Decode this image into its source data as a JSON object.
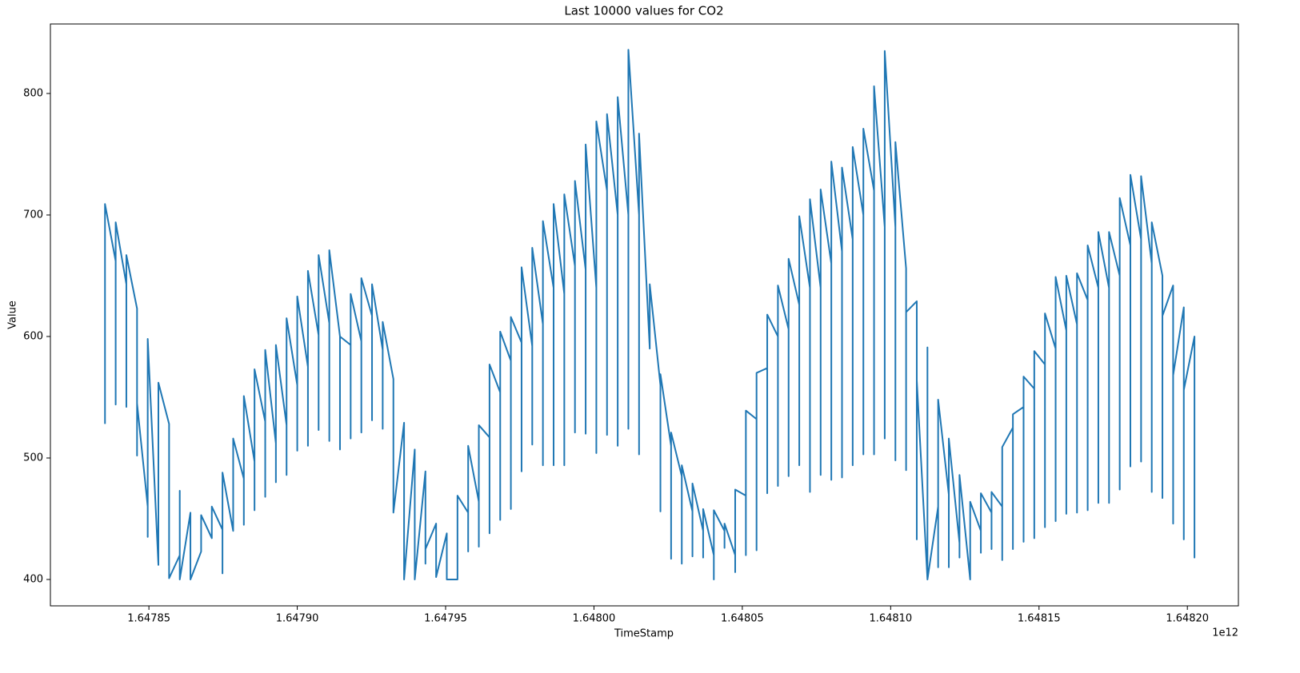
{
  "chart_data": {
    "type": "line",
    "title": "Last 10000 values for CO2",
    "x_label": "TimeStamp",
    "y_label": "Value",
    "x_offset_label": "1e12",
    "color": "#1f77b4",
    "grid": false,
    "xlim": [
      1.6478168,
      1.6482172
    ],
    "xticks": [
      {
        "value": 1.64785,
        "label": "1.64785"
      },
      {
        "value": 1.6479,
        "label": "1.64790"
      },
      {
        "value": 1.64795,
        "label": "1.64795"
      },
      {
        "value": 1.648,
        "label": "1.64800"
      },
      {
        "value": 1.64805,
        "label": "1.64805"
      },
      {
        "value": 1.6481,
        "label": "1.64810"
      },
      {
        "value": 1.64815,
        "label": "1.64815"
      },
      {
        "value": 1.6482,
        "label": "1.64820"
      }
    ],
    "ylim": [
      378.3,
      857.2
    ],
    "yticks": [
      400,
      500,
      600,
      700,
      800
    ],
    "x": [
      1.6478352,
      1.6478352,
      1.6478388,
      1.6478388,
      1.6478388,
      1.6478424,
      1.6478424,
      1.6478424,
      1.647846,
      1.647846,
      1.647846,
      1.6478496,
      1.6478496,
      1.6478496,
      1.6478532,
      1.6478532,
      1.6478568,
      1.6478568,
      1.6478604,
      1.6478604,
      1.6478604,
      1.647864,
      1.647864,
      1.6478676,
      1.6478676,
      1.6478712,
      1.6478712,
      1.6478748,
      1.6478748,
      1.6478748,
      1.6478784,
      1.6478784,
      1.647882,
      1.647882,
      1.647882,
      1.6478856,
      1.6478856,
      1.6478856,
      1.6478892,
      1.6478892,
      1.6478892,
      1.6478928,
      1.6478928,
      1.6478928,
      1.6478964,
      1.6478964,
      1.6478964,
      1.6479,
      1.6479,
      1.6479,
      1.6479036,
      1.6479036,
      1.6479036,
      1.6479072,
      1.6479072,
      1.6479072,
      1.6479108,
      1.6479108,
      1.6479108,
      1.6479144,
      1.6479144,
      1.6479144,
      1.647918,
      1.647918,
      1.647918,
      1.6479216,
      1.6479216,
      1.6479216,
      1.6479252,
      1.6479252,
      1.6479252,
      1.6479288,
      1.6479288,
      1.6479288,
      1.6479324,
      1.6479324,
      1.647936,
      1.647936,
      1.6479396,
      1.6479396,
      1.6479432,
      1.6479432,
      1.6479432,
      1.6479468,
      1.6479468,
      1.6479504,
      1.6479504,
      1.647954,
      1.647954,
      1.6479576,
      1.6479576,
      1.6479576,
      1.6479612,
      1.6479612,
      1.6479612,
      1.6479648,
      1.6479648,
      1.6479648,
      1.6479684,
      1.6479684,
      1.6479684,
      1.647972,
      1.647972,
      1.647972,
      1.6479756,
      1.6479756,
      1.6479756,
      1.6479792,
      1.6479792,
      1.6479792,
      1.6479828,
      1.6479828,
      1.6479828,
      1.6479864,
      1.6479864,
      1.6479864,
      1.64799,
      1.64799,
      1.64799,
      1.6479936,
      1.6479936,
      1.6479936,
      1.6479972,
      1.6479972,
      1.6479972,
      1.6480008,
      1.6480008,
      1.6480008,
      1.6480044,
      1.6480044,
      1.6480044,
      1.648008,
      1.648008,
      1.648008,
      1.6480116,
      1.6480116,
      1.6480116,
      1.6480152,
      1.6480152,
      1.6480152,
      1.6480188,
      1.6480188,
      1.6480224,
      1.6480224,
      1.6480224,
      1.648026,
      1.648026,
      1.648026,
      1.6480296,
      1.6480296,
      1.6480296,
      1.6480332,
      1.6480332,
      1.6480332,
      1.6480368,
      1.6480368,
      1.6480368,
      1.6480404,
      1.6480404,
      1.6480404,
      1.648044,
      1.648044,
      1.648044,
      1.6480476,
      1.6480476,
      1.6480476,
      1.6480512,
      1.6480512,
      1.6480512,
      1.6480548,
      1.6480548,
      1.6480548,
      1.6480584,
      1.6480584,
      1.6480584,
      1.648062,
      1.648062,
      1.648062,
      1.6480656,
      1.6480656,
      1.6480656,
      1.6480692,
      1.6480692,
      1.6480692,
      1.6480728,
      1.6480728,
      1.6480728,
      1.6480764,
      1.6480764,
      1.6480764,
      1.64808,
      1.64808,
      1.64808,
      1.6480836,
      1.6480836,
      1.6480836,
      1.6480872,
      1.6480872,
      1.6480872,
      1.6480908,
      1.6480908,
      1.6480908,
      1.6480944,
      1.6480944,
      1.6480944,
      1.648098,
      1.648098,
      1.648098,
      1.6481016,
      1.6481016,
      1.6481016,
      1.6481052,
      1.6481052,
      1.6481052,
      1.6481088,
      1.6481088,
      1.6481088,
      1.6481124,
      1.6481124,
      1.6481124,
      1.648116,
      1.648116,
      1.648116,
      1.6481196,
      1.6481196,
      1.6481196,
      1.6481232,
      1.6481232,
      1.6481232,
      1.6481268,
      1.6481268,
      1.6481304,
      1.6481304,
      1.6481304,
      1.648134,
      1.648134,
      1.648134,
      1.6481376,
      1.6481376,
      1.6481376,
      1.6481412,
      1.6481412,
      1.6481412,
      1.6481448,
      1.6481448,
      1.6481448,
      1.6481484,
      1.6481484,
      1.6481484,
      1.648152,
      1.648152,
      1.648152,
      1.6481556,
      1.6481556,
      1.6481556,
      1.6481592,
      1.6481592,
      1.6481592,
      1.6481628,
      1.6481628,
      1.6481628,
      1.6481664,
      1.6481664,
      1.6481664,
      1.64817,
      1.64817,
      1.64817,
      1.6481736,
      1.6481736,
      1.6481736,
      1.6481772,
      1.6481772,
      1.6481772,
      1.6481808,
      1.6481808,
      1.6481808,
      1.6481844,
      1.6481844,
      1.6481844,
      1.648188,
      1.648188,
      1.648188,
      1.6481916,
      1.6481916,
      1.6481916,
      1.6481952,
      1.6481952,
      1.6481952,
      1.6481988,
      1.6481988,
      1.6481988,
      1.6482024,
      1.6482024,
      1.6482024
    ],
    "values": [
      528,
      709,
      662,
      544,
      694,
      643,
      542,
      667,
      623,
      502,
      545,
      460,
      435,
      598,
      412,
      562,
      528,
      401,
      420,
      473,
      400,
      455,
      400,
      423,
      453,
      434,
      460,
      441,
      405,
      488,
      440,
      516,
      483,
      445,
      551,
      497,
      457,
      573,
      530,
      468,
      589,
      512,
      480,
      593,
      527,
      486,
      615,
      560,
      506,
      633,
      575,
      510,
      654,
      601,
      523,
      667,
      611,
      514,
      671,
      600,
      507,
      600,
      593,
      516,
      635,
      596,
      521,
      648,
      617,
      531,
      643,
      589,
      524,
      612,
      565,
      455,
      529,
      400,
      507,
      400,
      489,
      413,
      425,
      446,
      402,
      438,
      400,
      400,
      469,
      455,
      423,
      510,
      464,
      427,
      527,
      517,
      438,
      577,
      554,
      449,
      604,
      580,
      458,
      616,
      595,
      489,
      657,
      592,
      511,
      673,
      610,
      494,
      695,
      640,
      494,
      709,
      635,
      494,
      717,
      658,
      521,
      728,
      655,
      520,
      758,
      640,
      504,
      777,
      720,
      519,
      783,
      700,
      510,
      797,
      700,
      524,
      836,
      700,
      503,
      767,
      590,
      643,
      560,
      456,
      569,
      510,
      417,
      521,
      485,
      413,
      494,
      456,
      419,
      479,
      440,
      418,
      458,
      420,
      400,
      457,
      440,
      426,
      446,
      420,
      406,
      474,
      469,
      420,
      539,
      532,
      424,
      570,
      574,
      471,
      618,
      600,
      477,
      642,
      606,
      485,
      664,
      626,
      494,
      699,
      640,
      472,
      713,
      640,
      486,
      721,
      660,
      482,
      744,
      670,
      484,
      739,
      680,
      494,
      756,
      700,
      503,
      771,
      720,
      503,
      806,
      690,
      516,
      835,
      690,
      498,
      760,
      656,
      490,
      620,
      629,
      433,
      564,
      400,
      591,
      400,
      460,
      410,
      548,
      470,
      410,
      516,
      430,
      418,
      486,
      400,
      464,
      440,
      422,
      471,
      455,
      425,
      472,
      460,
      416,
      509,
      525,
      425,
      536,
      542,
      431,
      567,
      557,
      434,
      588,
      577,
      443,
      619,
      590,
      448,
      649,
      605,
      454,
      650,
      610,
      455,
      652,
      630,
      457,
      675,
      640,
      463,
      686,
      640,
      463,
      686,
      650,
      474,
      714,
      675,
      493,
      733,
      680,
      497,
      732,
      660,
      472,
      694,
      650,
      467,
      617,
      642,
      446,
      568,
      624,
      433,
      556,
      600,
      418,
      549
    ]
  }
}
